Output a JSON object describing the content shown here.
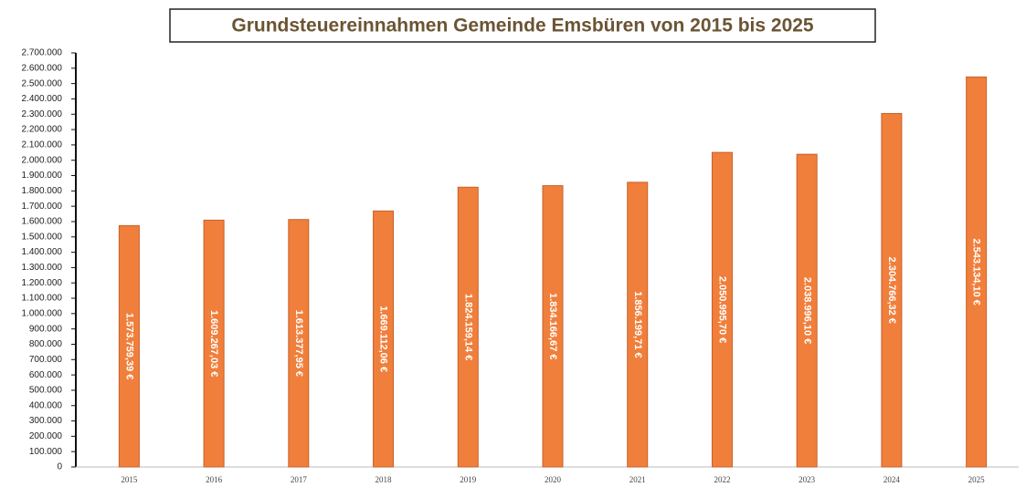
{
  "chart_data": {
    "type": "bar",
    "title": "Grundsteuereinnahmen Gemeinde Emsbüren von 2015 bis 2025",
    "categories": [
      "2015",
      "2016",
      "2017",
      "2018",
      "2019",
      "2020",
      "2021",
      "2022",
      "2023",
      "2024",
      "2025"
    ],
    "values": [
      1573759.39,
      1609267.03,
      1613377.95,
      1669112.06,
      1824159.14,
      1834166.67,
      1856199.71,
      2050995.7,
      2038996.1,
      2304766.32,
      2543134.1
    ],
    "value_labels": [
      "1.573.759,39 €",
      "1.609.267,03 €",
      "1.613.377,95 €",
      "1.669.112,06 €",
      "1.824.159,14 €",
      "1.834.166,67 €",
      "1.856.199,71 €",
      "2.050.995,70 €",
      "2.038.996,10 €",
      "2.304.766,32 €",
      "2.543.134,10 €"
    ],
    "color": "#f07f3c",
    "ylim": [
      0,
      2700000
    ],
    "yticks": [
      0,
      {
        "value": 100000,
        "label": "100.000"
      },
      {
        "value": 200000,
        "label": "200.000"
      },
      {
        "value": 300000,
        "label": "300.000"
      },
      {
        "value": 400000,
        "label": "400.000"
      },
      {
        "value": 500000,
        "label": "500.000"
      },
      {
        "value": 600000,
        "label": "600.000"
      },
      {
        "value": 700000,
        "label": "700.000"
      },
      {
        "value": 800000,
        "label": "800.000"
      },
      {
        "value": 900000,
        "label": "900.000"
      },
      {
        "value": 1000000,
        "label": "1.000.000"
      },
      {
        "value": 1100000,
        "label": "1.100.000"
      },
      {
        "value": 1200000,
        "label": "1.200.000"
      },
      {
        "value": 1300000,
        "label": "1.300.000"
      },
      {
        "value": 1400000,
        "label": "1.400.000"
      },
      {
        "value": 1500000,
        "label": "1.500.000"
      },
      {
        "value": 1600000,
        "label": "1.600.000"
      },
      {
        "value": 1700000,
        "label": "1.700.000"
      },
      {
        "value": 1800000,
        "label": "1.800.000"
      },
      {
        "value": 1900000,
        "label": "1.900.000"
      },
      {
        "value": 2000000,
        "label": "2.000.000"
      },
      {
        "value": 2100000,
        "label": "2.100.000"
      },
      {
        "value": 2200000,
        "label": "2.200.000"
      },
      {
        "value": 2300000,
        "label": "2.300.000"
      },
      {
        "value": 2400000,
        "label": "2.400.000"
      },
      {
        "value": 2500000,
        "label": "2.500.000"
      },
      {
        "value": 2600000,
        "label": "2.600.000"
      },
      {
        "value": 2700000,
        "label": "2.700.000"
      }
    ]
  }
}
